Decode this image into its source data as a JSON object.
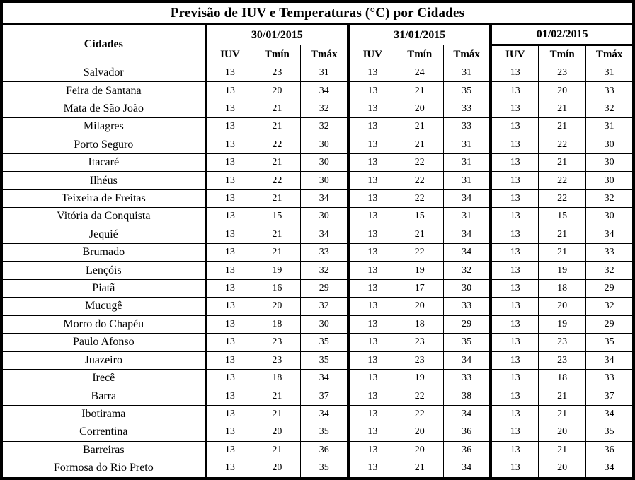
{
  "title": "Previsão de IUV e Temperaturas (°C) por Cidades",
  "table": {
    "city_column_header": "Cidades",
    "date_groups": [
      "30/01/2015",
      "31/01/2015",
      "01/02/2015"
    ],
    "sub_headers": [
      "IUV",
      "Tmín",
      "Tmáx"
    ],
    "rows": [
      {
        "city": "Salvador",
        "values": [
          13,
          23,
          31,
          13,
          24,
          31,
          13,
          23,
          31
        ]
      },
      {
        "city": "Feira de Santana",
        "values": [
          13,
          20,
          34,
          13,
          21,
          35,
          13,
          20,
          33
        ]
      },
      {
        "city": "Mata de São João",
        "values": [
          13,
          21,
          32,
          13,
          20,
          33,
          13,
          21,
          32
        ]
      },
      {
        "city": "Milagres",
        "values": [
          13,
          21,
          32,
          13,
          21,
          33,
          13,
          21,
          31
        ]
      },
      {
        "city": "Porto Seguro",
        "values": [
          13,
          22,
          30,
          13,
          21,
          31,
          13,
          22,
          30
        ]
      },
      {
        "city": "Itacaré",
        "values": [
          13,
          21,
          30,
          13,
          22,
          31,
          13,
          21,
          30
        ]
      },
      {
        "city": "Ilhéus",
        "values": [
          13,
          22,
          30,
          13,
          22,
          31,
          13,
          22,
          30
        ]
      },
      {
        "city": "Teixeira de Freitas",
        "values": [
          13,
          21,
          34,
          13,
          22,
          34,
          13,
          22,
          32
        ]
      },
      {
        "city": "Vitória da Conquista",
        "values": [
          13,
          15,
          30,
          13,
          15,
          31,
          13,
          15,
          30
        ]
      },
      {
        "city": "Jequié",
        "values": [
          13,
          21,
          34,
          13,
          21,
          34,
          13,
          21,
          34
        ]
      },
      {
        "city": "Brumado",
        "values": [
          13,
          21,
          33,
          13,
          22,
          34,
          13,
          21,
          33
        ]
      },
      {
        "city": "Lençóis",
        "values": [
          13,
          19,
          32,
          13,
          19,
          32,
          13,
          19,
          32
        ]
      },
      {
        "city": "Piatã",
        "values": [
          13,
          16,
          29,
          13,
          17,
          30,
          13,
          18,
          29
        ]
      },
      {
        "city": "Mucugê",
        "values": [
          13,
          20,
          32,
          13,
          20,
          33,
          13,
          20,
          32
        ]
      },
      {
        "city": "Morro do Chapéu",
        "values": [
          13,
          18,
          30,
          13,
          18,
          29,
          13,
          19,
          29
        ]
      },
      {
        "city": "Paulo Afonso",
        "values": [
          13,
          23,
          35,
          13,
          23,
          35,
          13,
          23,
          35
        ]
      },
      {
        "city": "Juazeiro",
        "values": [
          13,
          23,
          35,
          13,
          23,
          34,
          13,
          23,
          34
        ]
      },
      {
        "city": "Irecê",
        "values": [
          13,
          18,
          34,
          13,
          19,
          33,
          13,
          18,
          33
        ]
      },
      {
        "city": "Barra",
        "values": [
          13,
          21,
          37,
          13,
          22,
          38,
          13,
          21,
          37
        ]
      },
      {
        "city": "Ibotirama",
        "values": [
          13,
          21,
          34,
          13,
          22,
          34,
          13,
          21,
          34
        ]
      },
      {
        "city": "Correntina",
        "values": [
          13,
          20,
          35,
          13,
          20,
          36,
          13,
          20,
          35
        ]
      },
      {
        "city": "Barreiras",
        "values": [
          13,
          21,
          36,
          13,
          20,
          36,
          13,
          21,
          36
        ]
      },
      {
        "city": "Formosa do Rio Preto",
        "values": [
          13,
          20,
          35,
          13,
          21,
          34,
          13,
          20,
          34
        ]
      }
    ]
  },
  "colors": {
    "border": "#000000",
    "background": "#ffffff",
    "text": "#000000"
  }
}
